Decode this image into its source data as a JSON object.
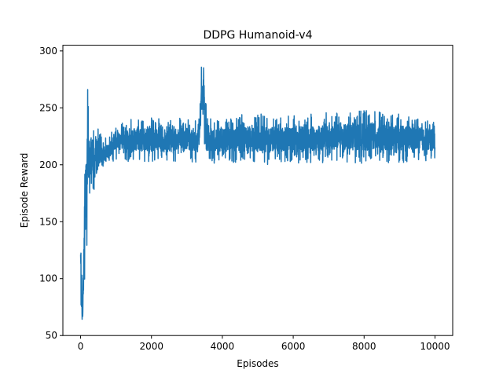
{
  "chart_data": {
    "type": "line",
    "title": "DDPG  Humanoid-v4",
    "xlabel": "Episodes",
    "ylabel": "Episode Reward",
    "xlim": [
      -500,
      10500
    ],
    "ylim": [
      50,
      305
    ],
    "xticks": [
      0,
      2000,
      4000,
      6000,
      8000,
      10000
    ],
    "yticks": [
      50,
      100,
      150,
      200,
      250,
      300
    ],
    "grid": false,
    "line_color": "#1f77b4",
    "series": [
      {
        "description": "single noisy episode-reward curve, envelope of values per episode range",
        "points": [
          {
            "x": 0,
            "low": 95,
            "high": 143
          },
          {
            "x": 20,
            "low": 62,
            "high": 115
          },
          {
            "x": 60,
            "low": 62,
            "high": 80
          },
          {
            "x": 100,
            "low": 70,
            "high": 190
          },
          {
            "x": 130,
            "low": 100,
            "high": 253
          },
          {
            "x": 170,
            "low": 105,
            "high": 240
          },
          {
            "x": 200,
            "low": 150,
            "high": 273
          },
          {
            "x": 250,
            "low": 165,
            "high": 240
          },
          {
            "x": 300,
            "low": 180,
            "high": 243
          },
          {
            "x": 400,
            "low": 172,
            "high": 225
          },
          {
            "x": 500,
            "low": 185,
            "high": 237
          },
          {
            "x": 600,
            "low": 195,
            "high": 222
          },
          {
            "x": 800,
            "low": 200,
            "high": 225
          },
          {
            "x": 1000,
            "low": 205,
            "high": 240
          },
          {
            "x": 1500,
            "low": 202,
            "high": 240
          },
          {
            "x": 2000,
            "low": 203,
            "high": 242
          },
          {
            "x": 2500,
            "low": 203,
            "high": 240
          },
          {
            "x": 3000,
            "low": 202,
            "high": 242
          },
          {
            "x": 3300,
            "low": 202,
            "high": 238
          },
          {
            "x": 3380,
            "low": 215,
            "high": 270
          },
          {
            "x": 3420,
            "low": 230,
            "high": 291
          },
          {
            "x": 3480,
            "low": 225,
            "high": 291
          },
          {
            "x": 3520,
            "low": 205,
            "high": 260
          },
          {
            "x": 3600,
            "low": 200,
            "high": 240
          },
          {
            "x": 4000,
            "low": 202,
            "high": 243
          },
          {
            "x": 5000,
            "low": 200,
            "high": 245
          },
          {
            "x": 6000,
            "low": 201,
            "high": 243
          },
          {
            "x": 7000,
            "low": 202,
            "high": 246
          },
          {
            "x": 8000,
            "low": 201,
            "high": 248
          },
          {
            "x": 9000,
            "low": 202,
            "high": 245
          },
          {
            "x": 10000,
            "low": 203,
            "high": 240
          }
        ]
      }
    ]
  }
}
